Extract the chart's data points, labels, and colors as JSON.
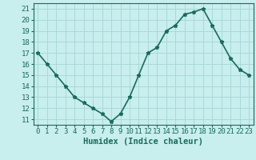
{
  "x": [
    0,
    1,
    2,
    3,
    4,
    5,
    6,
    7,
    8,
    9,
    10,
    11,
    12,
    13,
    14,
    15,
    16,
    17,
    18,
    19,
    20,
    21,
    22,
    23
  ],
  "y": [
    17,
    16,
    15,
    14,
    13,
    12.5,
    12,
    11.5,
    10.8,
    11.5,
    13,
    15,
    17,
    17.5,
    19,
    19.5,
    20.5,
    20.7,
    21,
    19.5,
    18,
    16.5,
    15.5,
    15
  ],
  "xlabel": "Humidex (Indice chaleur)",
  "line_color": "#1a6b5a",
  "marker": "*",
  "marker_size": 3.5,
  "bg_color": "#c8eeee",
  "grid_color": "#aad8d8",
  "ylim": [
    10.5,
    21.5
  ],
  "xlim": [
    -0.5,
    23.5
  ],
  "yticks": [
    11,
    12,
    13,
    14,
    15,
    16,
    17,
    18,
    19,
    20,
    21
  ],
  "xticks": [
    0,
    1,
    2,
    3,
    4,
    5,
    6,
    7,
    8,
    9,
    10,
    11,
    12,
    13,
    14,
    15,
    16,
    17,
    18,
    19,
    20,
    21,
    22,
    23
  ],
  "xlabel_fontsize": 7.5,
  "tick_fontsize": 6.5,
  "line_width": 1.2
}
